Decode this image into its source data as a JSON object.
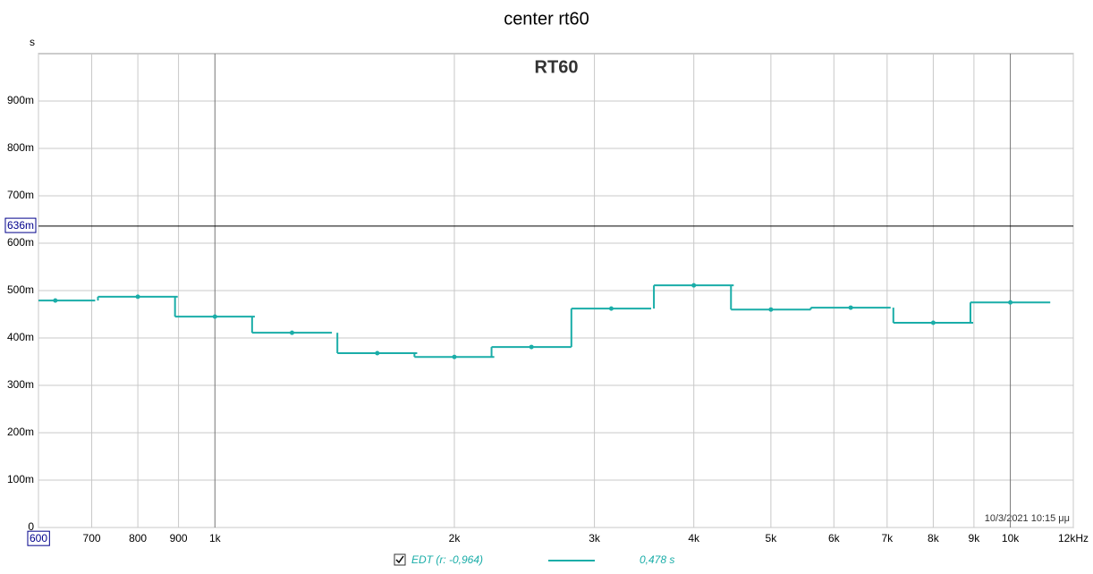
{
  "chart_data": {
    "type": "step",
    "title": "center rt60",
    "inner_title": "RT60",
    "y_unit": "s",
    "x": [
      630,
      800,
      1000,
      1250,
      1600,
      2000,
      2500,
      3150,
      4000,
      5000,
      6300,
      8000,
      10000
    ],
    "series": [
      {
        "name": "EDT (r: -0,964)",
        "color": "#1aada8",
        "values": [
          0.479,
          0.487,
          0.445,
          0.411,
          0.368,
          0.36,
          0.381,
          0.462,
          0.511,
          0.46,
          0.464,
          0.432,
          0.475
        ],
        "legend_value": "0,478 s"
      }
    ],
    "xlim": [
      600,
      12000
    ],
    "ylim": [
      0,
      1
    ],
    "log_x": true,
    "xticks": [
      600,
      700,
      800,
      900,
      {
        "value": 1000,
        "label": "1k"
      },
      {
        "value": 2000,
        "label": "2k"
      },
      {
        "value": 3000,
        "label": "3k"
      },
      {
        "value": 4000,
        "label": "4k"
      },
      {
        "value": 5000,
        "label": "5k"
      },
      {
        "value": 6000,
        "label": "6k"
      },
      {
        "value": 7000,
        "label": "7k"
      },
      {
        "value": 8000,
        "label": "8k"
      },
      {
        "value": 9000,
        "label": "9k"
      },
      {
        "value": 10000,
        "label": "10k"
      },
      {
        "value": 12000,
        "label": "12kHz"
      }
    ],
    "yticks": [
      0,
      {
        "value": 0.1,
        "label": "100m"
      },
      {
        "value": 0.2,
        "label": "200m"
      },
      {
        "value": 0.3,
        "label": "300m"
      },
      {
        "value": 0.4,
        "label": "400m"
      },
      {
        "value": 0.5,
        "label": "500m"
      },
      {
        "value": 0.6,
        "label": "600m"
      },
      {
        "value": 0.7,
        "label": "700m"
      },
      {
        "value": 0.8,
        "label": "800m"
      },
      {
        "value": 0.9,
        "label": "900m"
      }
    ],
    "cursor": {
      "value": 0.636,
      "label": "636m"
    },
    "timestamp": "10/3/2021 10:15 μμ",
    "grid": true
  }
}
